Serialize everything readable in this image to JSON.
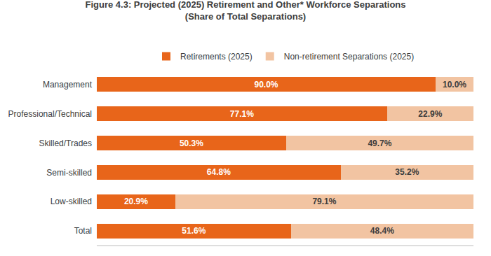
{
  "chart_data": {
    "type": "bar",
    "orientation": "horizontal",
    "stacked": true,
    "title": "Figure 4.3: Projected (2025) Retirement and Other* Workforce Separations",
    "subtitle": "(Share of Total Separations)",
    "categories": [
      "Management",
      "Professional/Technical",
      "Skilled/Trades",
      "Semi-skilled",
      "Low-skilled",
      "Total"
    ],
    "series": [
      {
        "name": "Retirements (2025)",
        "color": "#E8651A",
        "values": [
          90.0,
          77.1,
          50.3,
          64.8,
          20.9,
          51.6
        ],
        "value_labels": [
          "90.0%",
          "77.1%",
          "50.3%",
          "64.8%",
          "20.9%",
          "51.6%"
        ]
      },
      {
        "name": "Non-retirement Separations (2025)",
        "color": "#F2C4A2",
        "values": [
          10.0,
          22.9,
          49.7,
          35.2,
          79.1,
          48.4
        ],
        "value_labels": [
          "10.0%",
          "22.9%",
          "49.7%",
          "35.2%",
          "79.1%",
          "48.4%"
        ]
      }
    ],
    "xlim": [
      0,
      100
    ],
    "xticks": [],
    "data_labels": true,
    "tick_labels": "y",
    "grid": false,
    "legend": "top"
  }
}
